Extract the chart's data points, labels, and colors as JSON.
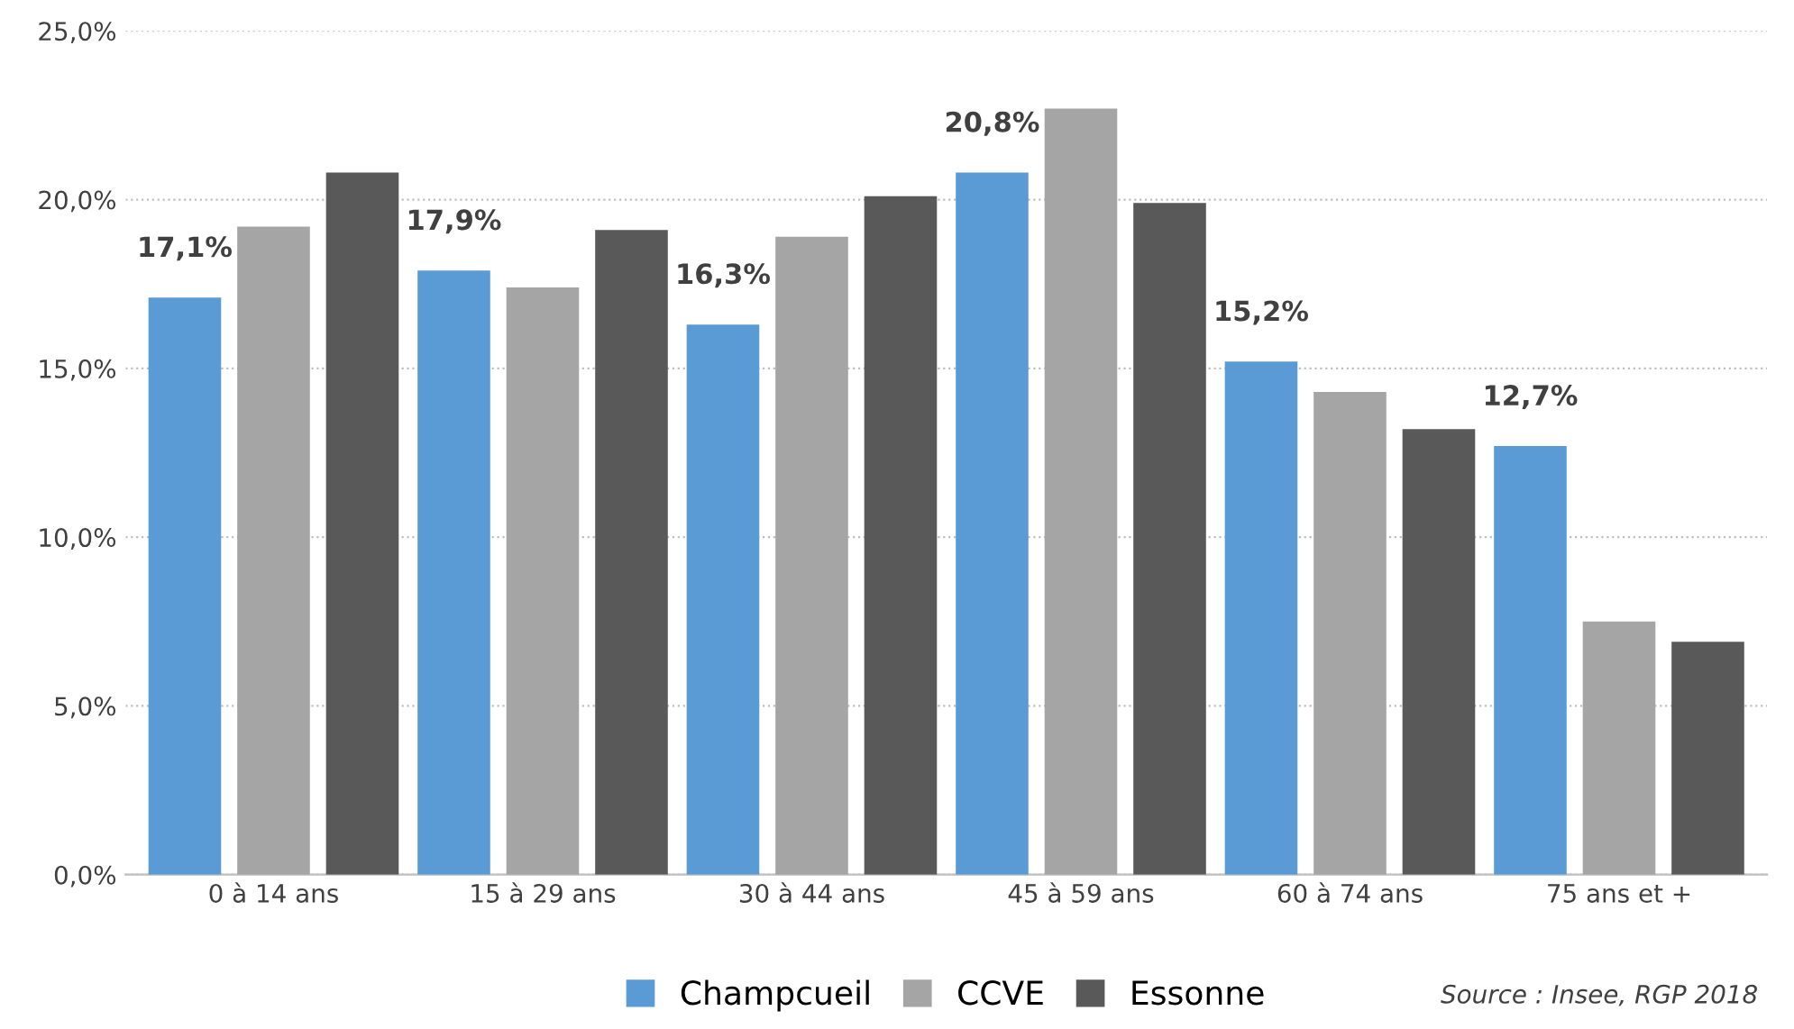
{
  "chart_data": {
    "type": "bar",
    "categories": [
      "0 à 14 ans",
      "15 à 29 ans",
      "30 à 44 ans",
      "45 à 59 ans",
      "60 à 74 ans",
      "75 ans et +"
    ],
    "series": [
      {
        "name": "Champcueil",
        "color": "#5b9bd5",
        "values": [
          17.1,
          17.9,
          16.3,
          20.8,
          15.2,
          12.7
        ],
        "value_labels": [
          "17,1%",
          "17,9%",
          "16,3%",
          "20,8%",
          "15,2%",
          "12,7%"
        ]
      },
      {
        "name": "CCVE",
        "color": "#a5a5a5",
        "values": [
          19.2,
          17.4,
          18.9,
          22.7,
          14.3,
          7.5
        ]
      },
      {
        "name": "Essonne",
        "color": "#595959",
        "values": [
          20.8,
          19.1,
          20.1,
          19.9,
          13.2,
          6.9
        ]
      }
    ],
    "ylim": [
      0,
      25
    ],
    "yticks": [
      {
        "value": 0,
        "label": "0,0%"
      },
      {
        "value": 5,
        "label": "5,0%"
      },
      {
        "value": 10,
        "label": "10,0%"
      },
      {
        "value": 15,
        "label": "15,0%"
      },
      {
        "value": 20,
        "label": "20,0%"
      },
      {
        "value": 25,
        "label": "25,0%"
      }
    ],
    "grid": "y",
    "legend": "bottom",
    "annotations": [
      "Source : Insee, RGP 2018"
    ]
  }
}
